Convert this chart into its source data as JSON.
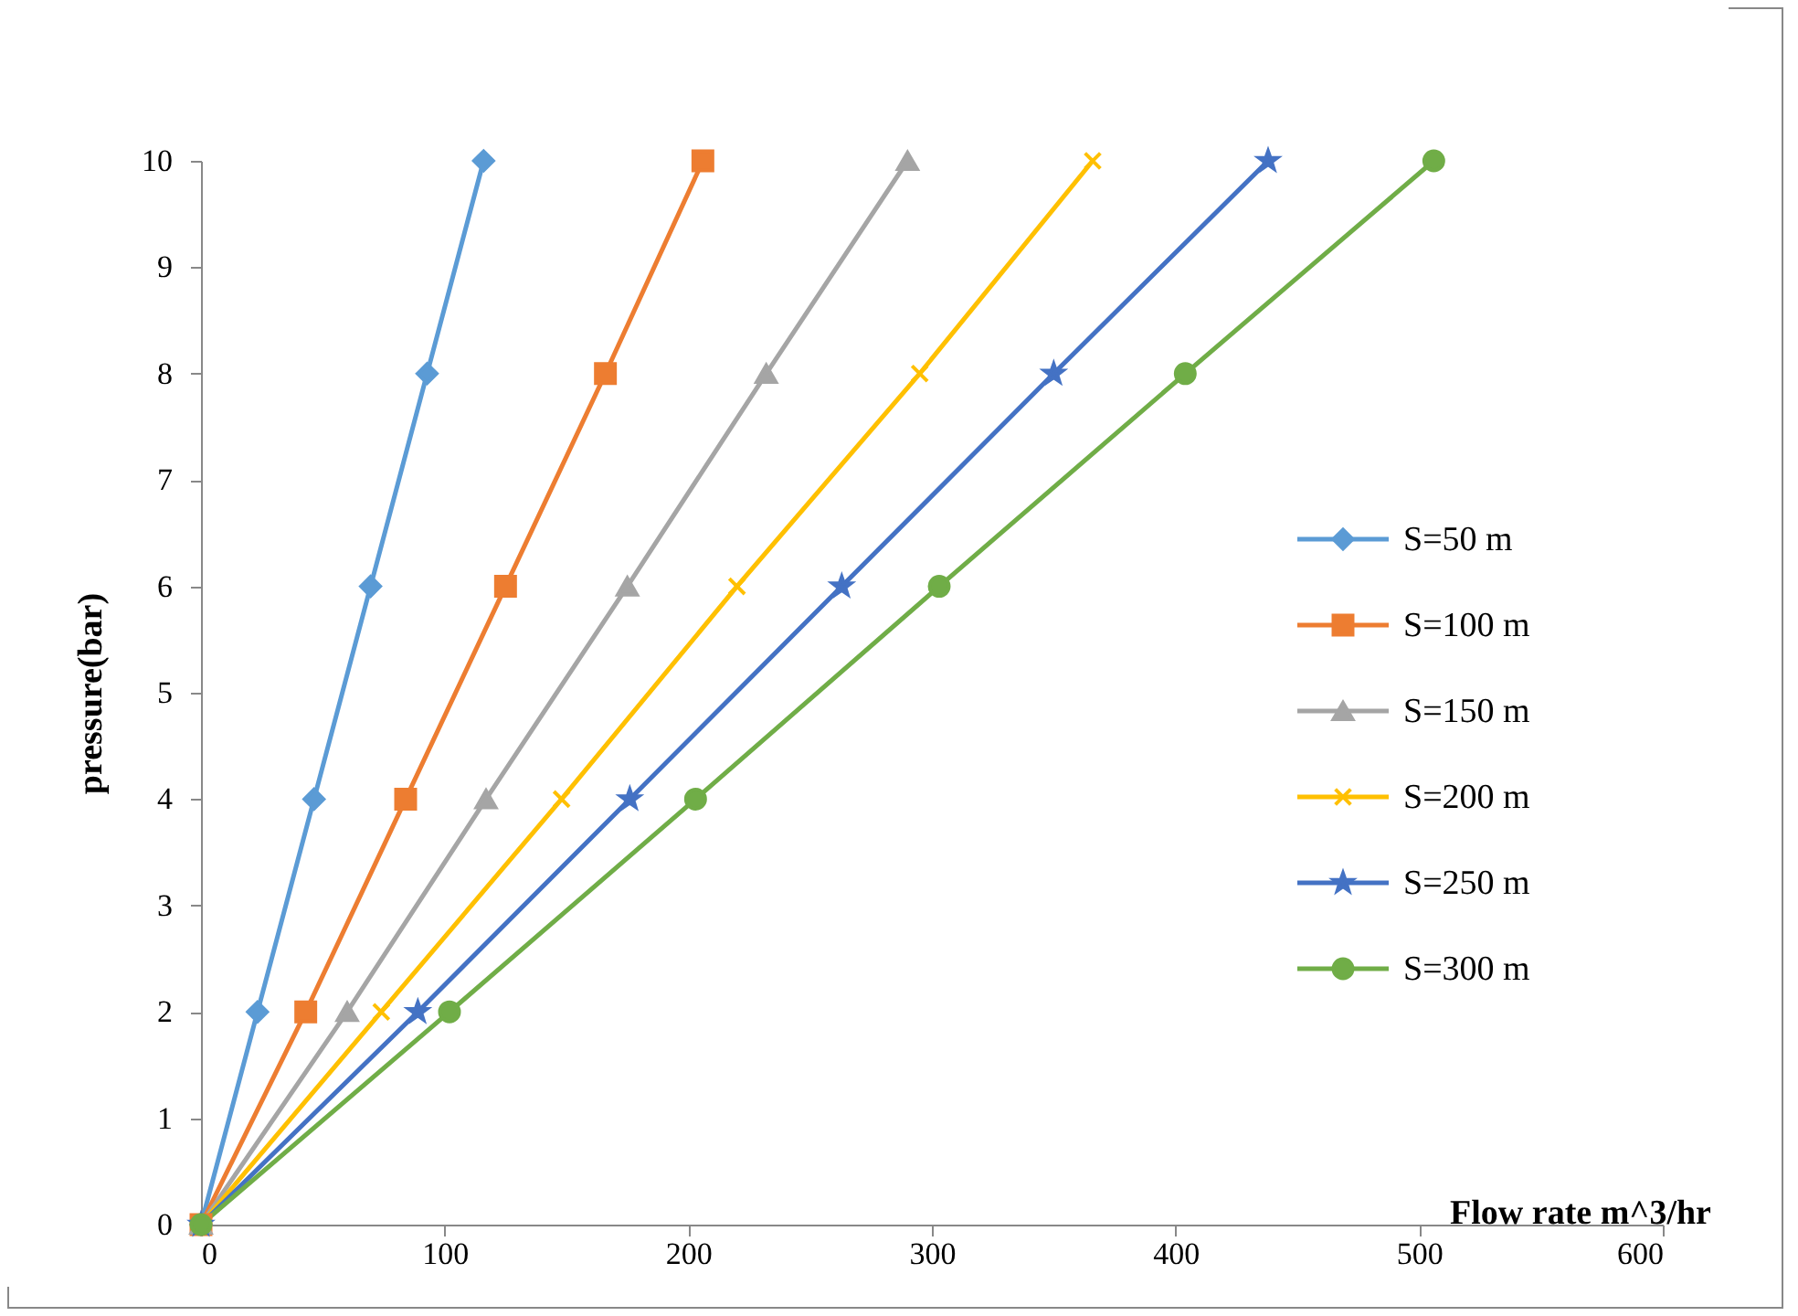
{
  "chart_data": {
    "type": "line",
    "xlabel": "Flow rate m^3/hr",
    "ylabel": "pressure(bar)",
    "xlim": [
      0,
      600
    ],
    "xticks": [
      0,
      100,
      200,
      300,
      400,
      500,
      600
    ],
    "ylim": [
      0,
      10
    ],
    "yticks": [
      0,
      1,
      2,
      3,
      4,
      5,
      6,
      7,
      8,
      9,
      10
    ],
    "grid": false,
    "legend": "right",
    "series": [
      {
        "name": "S=50 m",
        "color": "#5b9bd5",
        "marker": "diamond",
        "x": [
          0,
          23.2,
          46.4,
          69.6,
          92.8,
          116
        ],
        "values": [
          0,
          2,
          4,
          6,
          8,
          10
        ]
      },
      {
        "name": "S=100 m",
        "color": "#ed7d31",
        "marker": "square",
        "x": [
          0,
          43,
          84,
          125,
          166,
          206
        ],
        "values": [
          0,
          2,
          4,
          6,
          8,
          10
        ]
      },
      {
        "name": "S=150 m",
        "color": "#a5a5a5",
        "marker": "triangle",
        "x": [
          0,
          60,
          117,
          175,
          232,
          290
        ],
        "values": [
          0,
          2,
          4,
          6,
          8,
          10
        ]
      },
      {
        "name": "S=200 m",
        "color": "#ffc000",
        "marker": "cross",
        "x": [
          0,
          74,
          148,
          220,
          295,
          366
        ],
        "values": [
          0,
          2,
          4,
          6,
          8,
          10
        ]
      },
      {
        "name": "S=250 m",
        "color": "#4472c4",
        "marker": "star",
        "x": [
          0,
          89,
          176,
          263,
          350,
          438
        ],
        "values": [
          0,
          2,
          4,
          6,
          8,
          10
        ]
      },
      {
        "name": "S=300 m",
        "color": "#70ad47",
        "marker": "circle",
        "x": [
          0,
          102,
          203,
          303,
          404,
          506
        ],
        "values": [
          0,
          2,
          4,
          6,
          8,
          10
        ]
      }
    ]
  }
}
